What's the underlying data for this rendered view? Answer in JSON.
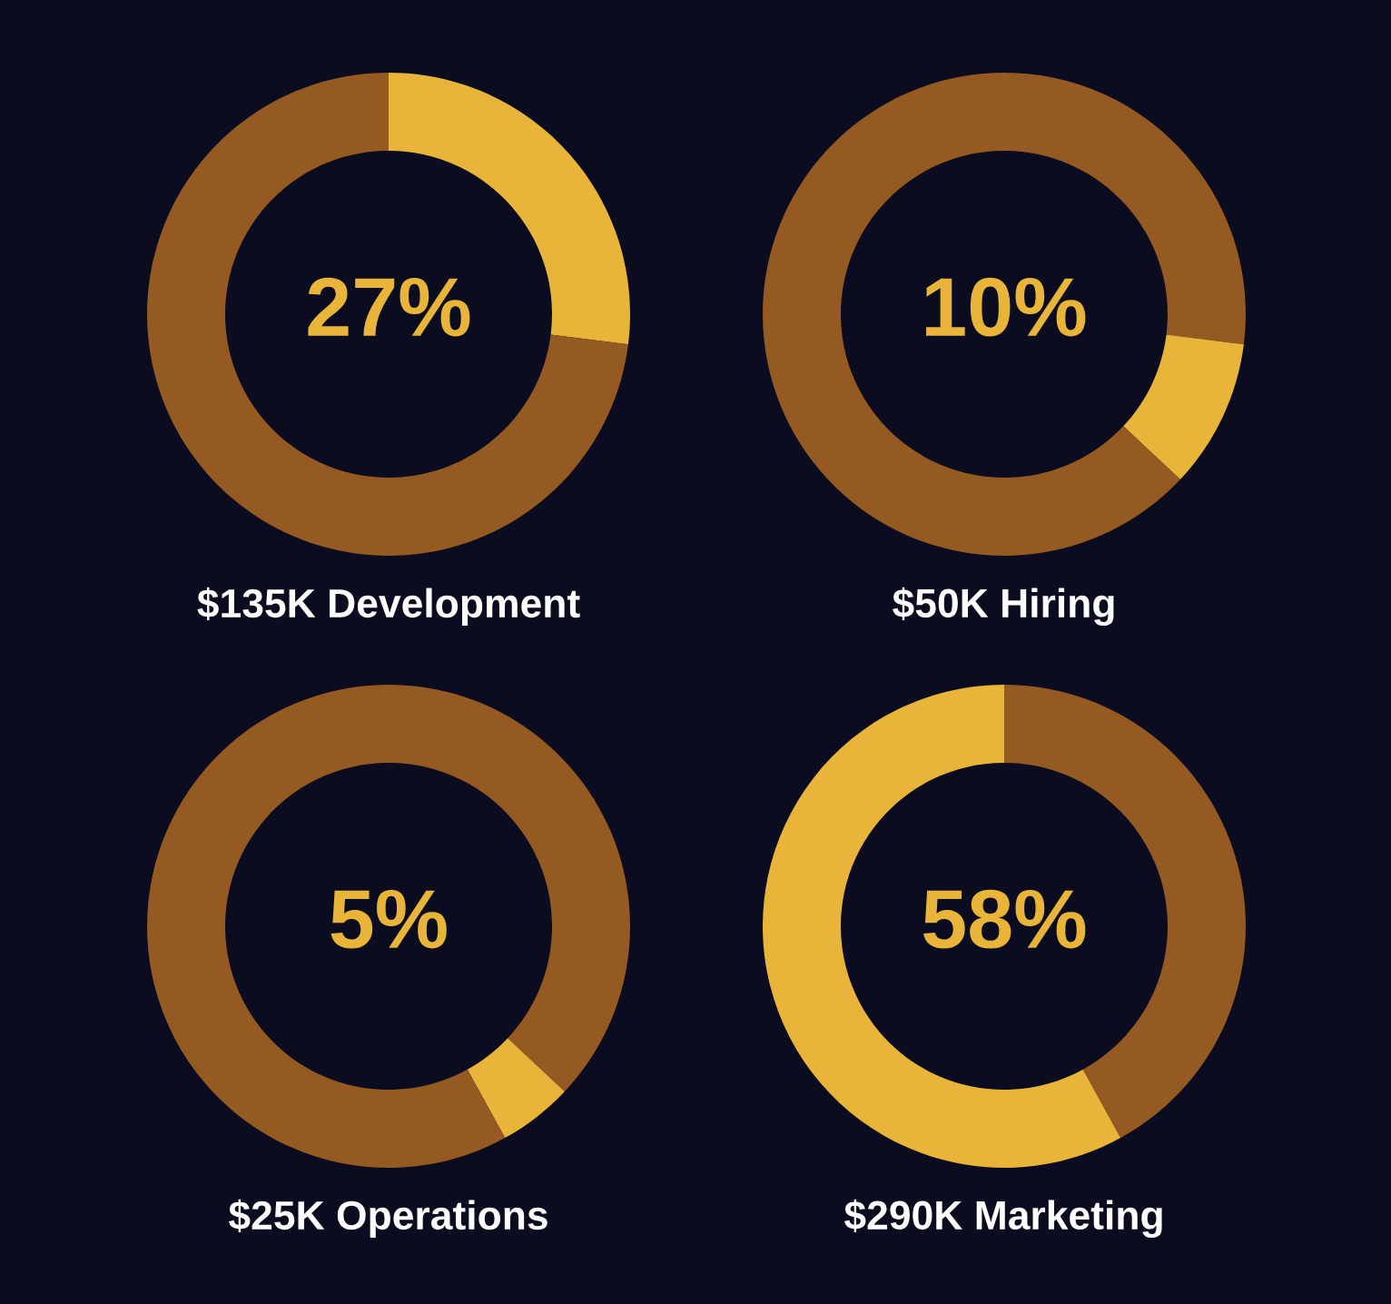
{
  "chart_data": [
    {
      "type": "donut",
      "title": "$135K Development",
      "categories": [
        null,
        null
      ],
      "values": [
        27,
        73
      ],
      "colors": [
        "#e8b43a",
        "#955a22"
      ],
      "annotations": [
        "27%"
      ]
    },
    {
      "type": "donut",
      "title": "$50K Hiring",
      "categories": [
        null,
        null,
        null
      ],
      "values": [
        27,
        10,
        63
      ],
      "colors": [
        "#955a22",
        "#e8b43a",
        "#955a22"
      ],
      "annotations": [
        "10%"
      ]
    },
    {
      "type": "donut",
      "title": "$25K Operations",
      "categories": [
        null,
        null,
        null
      ],
      "values": [
        37,
        5,
        58
      ],
      "colors": [
        "#955a22",
        "#e8b43a",
        "#955a22"
      ],
      "annotations": [
        "5%"
      ]
    },
    {
      "type": "donut",
      "title": "$290K Marketing",
      "categories": [
        null,
        null
      ],
      "values": [
        42,
        58
      ],
      "colors": [
        "#955a22",
        "#e8b43a"
      ],
      "annotations": [
        "58%"
      ]
    }
  ]
}
